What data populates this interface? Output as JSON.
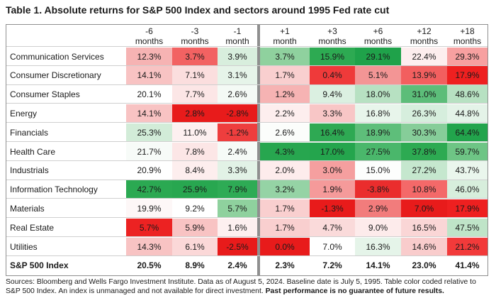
{
  "title": "Table 1. Absolute returns for S&P 500 Index and sectors around 1995 Fed rate cut",
  "columns": [
    {
      "top": "-6",
      "bottom": "months"
    },
    {
      "top": "-3",
      "bottom": "months"
    },
    {
      "top": "-1",
      "bottom": "month"
    },
    {
      "top": "+1",
      "bottom": "month"
    },
    {
      "top": "+3",
      "bottom": "months"
    },
    {
      "top": "+6",
      "bottom": "months"
    },
    {
      "top": "+12",
      "bottom": "months"
    },
    {
      "top": "+18",
      "bottom": "months"
    }
  ],
  "rows": [
    {
      "label": "Communication Services",
      "values": [
        "12.3%",
        "3.7%",
        "3.9%",
        "3.7%",
        "15.9%",
        "29.1%",
        "22.4%",
        "29.3%"
      ],
      "colors": [
        "#f6b3b3",
        "#f26262",
        "#d8eedd",
        "#8fd19e",
        "#2daa52",
        "#1fa24a",
        "#fdeeee",
        "#f7a0a0"
      ]
    },
    {
      "label": "Consumer Discretionary",
      "values": [
        "14.1%",
        "7.1%",
        "3.1%",
        "1.7%",
        "0.4%",
        "5.1%",
        "13.9%",
        "17.9%"
      ],
      "colors": [
        "#f8c3c3",
        "#fbdede",
        "#e6f4e9",
        "#f9cfcf",
        "#ef3a3a",
        "#f39595",
        "#f25f5f",
        "#ee2020"
      ]
    },
    {
      "label": "Consumer Staples",
      "values": [
        "20.1%",
        "7.7%",
        "2.6%",
        "1.2%",
        "9.4%",
        "18.0%",
        "31.0%",
        "48.6%"
      ],
      "colors": [
        "#ffffff",
        "#fce6e6",
        "#f4faf5",
        "#f6b3b3",
        "#dbf0e1",
        "#b7e1c2",
        "#5cbd79",
        "#b7e1c2"
      ]
    },
    {
      "label": "Energy",
      "values": [
        "14.1%",
        "2.8%",
        "-2.8%",
        "2.2%",
        "3.3%",
        "16.8%",
        "26.3%",
        "44.8%"
      ],
      "colors": [
        "#f8c3c3",
        "#e81b1b",
        "#e81b1b",
        "#fdeeee",
        "#f8c6c6",
        "#e8f5eb",
        "#d6eedd",
        "#e4f3e8"
      ]
    },
    {
      "label": "Financials",
      "values": [
        "25.3%",
        "11.0%",
        "-1.2%",
        "2.6%",
        "16.4%",
        "18.9%",
        "30.3%",
        "64.4%"
      ],
      "colors": [
        "#d2ecd8",
        "#fdf0f0",
        "#ee3e3e",
        "#fbfdfb",
        "#2ea953",
        "#5ebe7a",
        "#86cd99",
        "#22a44c"
      ]
    },
    {
      "label": "Health Care",
      "values": [
        "21.7%",
        "7.8%",
        "2.4%",
        "4.3%",
        "17.0%",
        "27.5%",
        "37.8%",
        "59.7%"
      ],
      "colors": [
        "#f7fbf8",
        "#fce6e6",
        "#f6fbf7",
        "#27a64f",
        "#24a54d",
        "#4ab76b",
        "#2daa52",
        "#6ec585"
      ]
    },
    {
      "label": "Industrials",
      "values": [
        "20.9%",
        "8.4%",
        "3.3%",
        "2.0%",
        "3.0%",
        "15.0%",
        "27.2%",
        "43.7%"
      ],
      "colors": [
        "#ffffff",
        "#fdeeee",
        "#e2f2e6",
        "#fdecec",
        "#f59f9f",
        "#fdfefd",
        "#c5e7ce",
        "#eaf6ed"
      ]
    },
    {
      "label": "Information Technology",
      "values": [
        "42.7%",
        "25.9%",
        "7.9%",
        "3.2%",
        "1.9%",
        "-3.8%",
        "10.8%",
        "46.0%"
      ],
      "colors": [
        "#2ba952",
        "#28a750",
        "#2eab55",
        "#95d3a5",
        "#f59a9a",
        "#ea2d2d",
        "#f46969",
        "#d7eedc"
      ]
    },
    {
      "label": "Materials",
      "values": [
        "19.9%",
        "9.2%",
        "5.7%",
        "1.7%",
        "-1.3%",
        "2.9%",
        "7.0%",
        "17.9%"
      ],
      "colors": [
        "#fdf7f7",
        "#ffffff",
        "#8fd19e",
        "#f9cfcf",
        "#e81b1b",
        "#f27c7c",
        "#e81b1b",
        "#ee2020"
      ]
    },
    {
      "label": "Real Estate",
      "values": [
        "5.7%",
        "5.9%",
        "1.6%",
        "1.7%",
        "4.7%",
        "9.0%",
        "16.5%",
        "47.5%"
      ],
      "colors": [
        "#ec2222",
        "#f8c3c3",
        "#fdf0f0",
        "#f9cfcf",
        "#fadada",
        "#fdebeb",
        "#fad6d6",
        "#bfe4c8"
      ]
    },
    {
      "label": "Utilities",
      "values": [
        "14.3%",
        "6.1%",
        "-2.5%",
        "0.0%",
        "7.0%",
        "16.3%",
        "14.6%",
        "21.2%"
      ],
      "colors": [
        "#f8c3c3",
        "#fbd8d8",
        "#e81b1b",
        "#e81b1b",
        "#ffffff",
        "#e5f4e9",
        "#f9cccc",
        "#f23a3a"
      ]
    }
  ],
  "index_row": {
    "label": "S&P 500 Index",
    "values": [
      "20.5%",
      "8.9%",
      "2.4%",
      "2.3%",
      "7.2%",
      "14.1%",
      "23.0%",
      "41.4%"
    ]
  },
  "source": {
    "plain": "Sources: Bloomberg and Wells Fargo Investment Institute. Data as of August 5, 2024. Baseline date is July 5, 1995. Table color coded relative to S&P 500 Index. An index is unmanaged and not available for direct investment.",
    "bold": "Past performance is no guarantee of future results."
  }
}
